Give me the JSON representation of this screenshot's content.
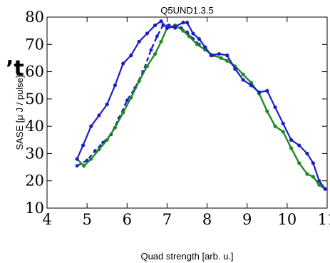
{
  "chart_data": {
    "type": "line",
    "title": "Q5UND1.3.5",
    "xlabel": "Quad strength [arb. u.]",
    "ylabel": "SASE [μ J / pulse]",
    "xlim": [
      4,
      11
    ],
    "ylim": [
      10,
      80
    ],
    "xticks": [
      "4",
      "5",
      "6",
      "7",
      "8",
      "9",
      "10",
      "11"
    ],
    "yticks": [
      "10",
      "20",
      "30",
      "40",
      "50",
      "60",
      "70",
      "80"
    ],
    "grid": false,
    "overlay_text": "’t",
    "colors": {
      "green": "#1f8a1f",
      "blue": "#1c1cc8"
    },
    "series": [
      {
        "style": "green-solid",
        "x": [
          4.75,
          4.92,
          5.1,
          5.3,
          5.5,
          5.7,
          5.9,
          6.1,
          6.3,
          6.5,
          6.7,
          6.85,
          7.0,
          7.2,
          7.4,
          7.55,
          7.75,
          7.95,
          8.15,
          8.35,
          8.5,
          8.7,
          8.9,
          9.1,
          9.3,
          9.5,
          9.7,
          9.9,
          10.1,
          10.3,
          10.5,
          10.65,
          10.8,
          10.95
        ],
        "y": [
          28,
          25.5,
          28,
          31.5,
          35,
          39.5,
          45,
          50.5,
          56.5,
          62,
          66.5,
          71,
          76,
          77,
          75,
          73,
          70,
          68,
          66,
          65,
          64,
          62,
          59,
          56,
          52,
          45.5,
          40,
          38,
          32,
          26.5,
          22.5,
          21.5,
          18.5,
          17
        ]
      },
      {
        "style": "blue-solid",
        "x": [
          4.75,
          4.9,
          5.1,
          5.3,
          5.5,
          5.7,
          5.9,
          6.1,
          6.3,
          6.5,
          6.7,
          6.85,
          7.0,
          7.2,
          7.4,
          7.5,
          7.65,
          7.8,
          7.95,
          8.1,
          8.3,
          8.5,
          8.7,
          8.9,
          9.1,
          9.3,
          9.5,
          9.7,
          9.9,
          10.1,
          10.3,
          10.5,
          10.65,
          10.8,
          10.95
        ],
        "y": [
          28,
          33,
          40,
          44,
          48,
          55,
          63,
          66,
          71,
          74,
          77,
          78.5,
          76,
          76.5,
          78,
          78,
          74,
          72,
          69,
          66,
          66.5,
          66,
          61,
          57,
          55,
          52.5,
          53,
          47,
          41,
          35,
          33,
          30,
          26.5,
          20,
          17
        ]
      },
      {
        "style": "blue-dashed",
        "x": [
          4.75,
          5.0,
          5.2,
          5.4,
          5.6,
          5.8,
          6.0,
          6.2,
          6.4,
          6.6,
          6.75,
          6.9,
          7.05,
          7.2,
          7.35,
          7.5,
          7.65,
          7.8
        ],
        "y": [
          25.5,
          27.5,
          31,
          34,
          37,
          43,
          49.5,
          54,
          60,
          68,
          73,
          77,
          77,
          76,
          76,
          74.5,
          72,
          70
        ]
      }
    ]
  }
}
